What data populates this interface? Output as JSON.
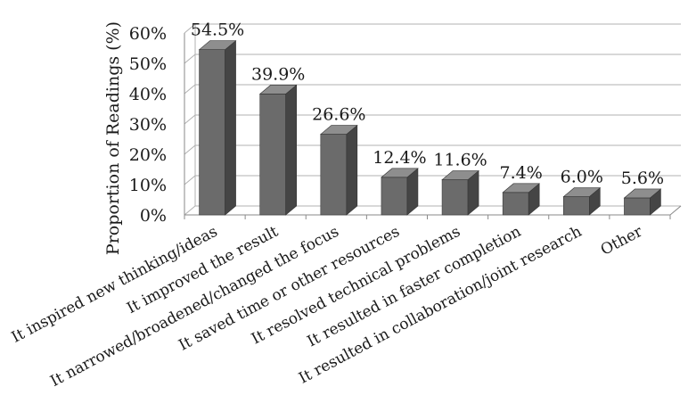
{
  "chart_data": {
    "type": "bar",
    "style": "3d-column",
    "ylabel": "Proportion of Readings (%)",
    "xlabel": "",
    "title": "",
    "ylim": [
      0,
      60
    ],
    "yticks": [
      "0%",
      "10%",
      "20%",
      "30%",
      "40%",
      "50%",
      "60%"
    ],
    "grid": true,
    "categories": [
      "It inspired new thinking/ideas",
      "It improved the result",
      "It narrowed/broadened/changed the focus",
      "It saved time or other resources",
      "It resolved technical problems",
      "It resulted in faster completion",
      "It resulted in collaboration/joint research",
      "Other"
    ],
    "values": [
      54.5,
      39.9,
      26.6,
      12.4,
      11.6,
      7.4,
      6.0,
      5.6
    ],
    "data_labels": [
      "54.5%",
      "39.9%",
      "26.6%",
      "12.4%",
      "11.6%",
      "7.4%",
      "6.0%",
      "5.6%"
    ],
    "colors": {
      "bar_front": "#6b6b6b",
      "bar_side": "#454545",
      "bar_top": "#8e8e8e",
      "grid": "#b0b0b0",
      "axis": "#8a8a8a"
    }
  }
}
